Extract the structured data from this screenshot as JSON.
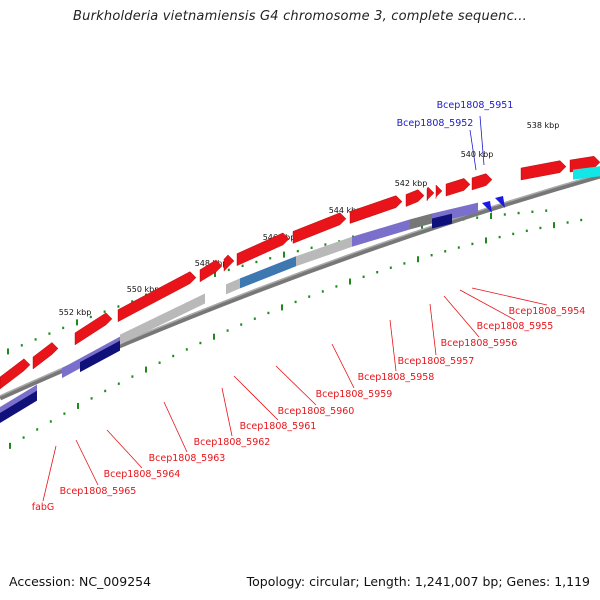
{
  "title": "Burkholderia vietnamiensis G4 chromosome 3, complete sequenc...",
  "footer": {
    "accession": "Accession: NC_009254",
    "topology": "Topology: circular; Length: 1,241,007 bp; Genes: 1,119"
  },
  "colors": {
    "red": "#e8141a",
    "blue_label": "#1a1acc",
    "purple": "#7a70cc",
    "navy": "#10107a",
    "grey": "#b9b9b9",
    "steel": "#3d78b0",
    "cyan": "#12e6e6",
    "tick": "#1e8a1e",
    "backbone": "#7a7a7a"
  },
  "ruler_labels": [
    "538 kbp",
    "540 kbp",
    "542 kbp",
    "544 kbp",
    "546 kbp",
    "548 kbp",
    "550 kbp",
    "552 kbp"
  ],
  "gene_labels_top": [
    "Bcep1808_5951",
    "Bcep1808_5952"
  ],
  "gene_labels": [
    "Bcep1808_5954",
    "Bcep1808_5955",
    "Bcep1808_5956",
    "Bcep1808_5957",
    "Bcep1808_5958",
    "Bcep1808_5959",
    "Bcep1808_5960",
    "Bcep1808_5961",
    "Bcep1808_5962",
    "Bcep1808_5963",
    "Bcep1808_5964",
    "Bcep1808_5965",
    "fabG"
  ]
}
